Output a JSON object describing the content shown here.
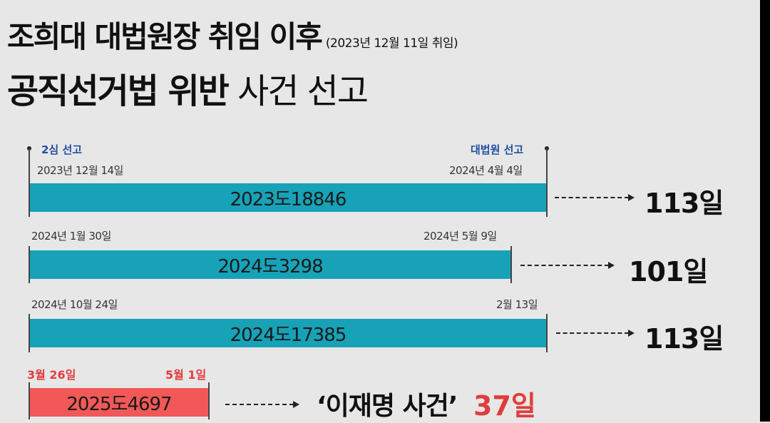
{
  "title": {
    "line1": "조희대 대법원장 취임 이후",
    "line1_note": "(2023년 12월 11일 취임)",
    "line2_bold": "공직선거법 위반",
    "line2_normal": "사건 선고"
  },
  "cases": [
    {
      "case_no": "2023도18846",
      "start_label": "2심 선고",
      "end_label": "대법원 선고",
      "start_date": "2023년 12월 14일",
      "end_date": "2024년 4월 4일",
      "days": "113일"
    },
    {
      "case_no": "2024도3298",
      "start_date": "2024년 1월 30일",
      "end_date": "2024년 5월 9일",
      "days": "101일"
    },
    {
      "case_no": "2024도17385",
      "start_date": "2024년 10월 24일",
      "end_date": "2월 13일",
      "days": "113일"
    },
    {
      "case_no": "2025도4697",
      "start_date": "3월 26일",
      "end_date": "5월 1일",
      "case_name": "‘이재명 사건’",
      "days": "37일"
    }
  ],
  "colors": {
    "teal_bar": "#17a2b8",
    "red_bar": "#f25858",
    "label_blue": "#1f4fa0",
    "label_red": "#e03c3c"
  }
}
